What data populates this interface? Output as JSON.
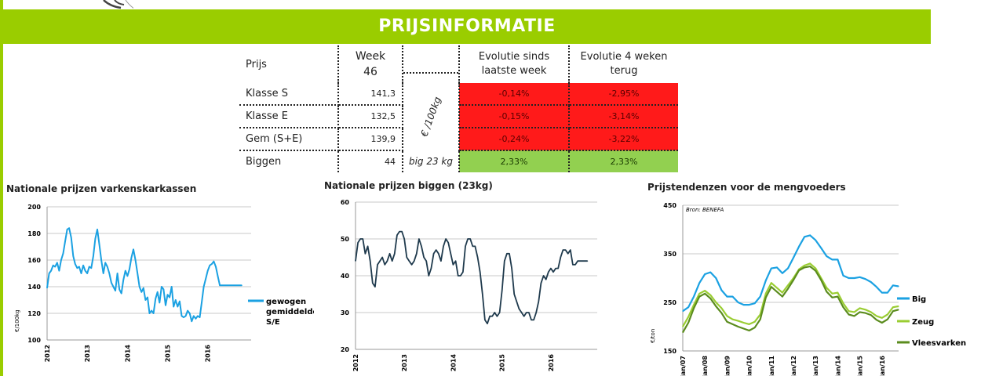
{
  "header": {
    "title": "PRIJSINFORMATIE"
  },
  "price_table": {
    "col_prijs": "Prijs",
    "col_week": "Week",
    "week_number": "46",
    "col_evo_week": "Evolutie sinds laatste week",
    "col_evo_4w": "Evolutie 4 weken terug",
    "unit_main": "€ /100kg",
    "rows": [
      {
        "label": "Klasse S",
        "value": "141,3",
        "evo_week": "-0,14%",
        "evo_4w": "-2,95%"
      },
      {
        "label": "Klasse E",
        "value": "132,5",
        "evo_week": "-0,15%",
        "evo_4w": "-3,14%"
      },
      {
        "label": "Gem (S+E)",
        "value": "139,9",
        "evo_week": "-0,24%",
        "evo_4w": "-3,22%"
      },
      {
        "label": "Biggen",
        "value": "44",
        "unit": "big 23 kg",
        "evo_week": "2,33%",
        "evo_4w": "2,33%"
      }
    ],
    "colors": {
      "negative": "#ff1a1a",
      "positive": "#92d050"
    }
  },
  "chart_data": [
    {
      "type": "line",
      "title": "Nationale prijzen varkenskarkassen",
      "ylabel": "€/100kg",
      "ylim": [
        100,
        200
      ],
      "yticks": [
        "100",
        "120",
        "140",
        "160",
        "180",
        "200"
      ],
      "xtick_labels": [
        "2012",
        "2013",
        "2014",
        "2015",
        "2016"
      ],
      "grid": true,
      "legend": "right",
      "series": [
        {
          "name": "gewogen gemiddelde S/E",
          "color": "#1ba1e2",
          "x": [
            2012.0,
            2012.05,
            2012.1,
            2012.15,
            2012.2,
            2012.25,
            2012.3,
            2012.35,
            2012.4,
            2012.45,
            2012.5,
            2012.55,
            2012.6,
            2012.65,
            2012.7,
            2012.75,
            2012.8,
            2012.85,
            2012.9,
            2012.95,
            2013.0,
            2013.05,
            2013.1,
            2013.15,
            2013.2,
            2013.25,
            2013.3,
            2013.35,
            2013.4,
            2013.45,
            2013.5,
            2013.55,
            2013.6,
            2013.65,
            2013.7,
            2013.75,
            2013.8,
            2013.85,
            2013.9,
            2013.95,
            2014.0,
            2014.05,
            2014.1,
            2014.15,
            2014.2,
            2014.25,
            2014.3,
            2014.35,
            2014.4,
            2014.45,
            2014.5,
            2014.55,
            2014.6,
            2014.65,
            2014.7,
            2014.75,
            2014.8,
            2014.85,
            2014.9,
            2014.95,
            2015.0,
            2015.05,
            2015.1,
            2015.15,
            2015.2,
            2015.25,
            2015.3,
            2015.35,
            2015.4,
            2015.45,
            2015.5,
            2015.55,
            2015.6,
            2015.65,
            2015.7,
            2015.75,
            2015.8,
            2015.85,
            2015.9,
            2015.95,
            2016.0,
            2016.05,
            2016.1,
            2016.15,
            2016.2,
            2016.25,
            2016.3,
            2016.35,
            2016.4,
            2016.45,
            2016.5,
            2016.55,
            2016.6,
            2016.65,
            2016.7,
            2016.75,
            2016.8,
            2016.85
          ],
          "values": [
            139,
            150,
            152,
            156,
            155,
            158,
            152,
            160,
            165,
            174,
            183,
            184,
            177,
            163,
            157,
            154,
            155,
            150,
            156,
            152,
            150,
            155,
            154,
            163,
            176,
            183,
            172,
            160,
            150,
            158,
            155,
            150,
            143,
            140,
            137,
            150,
            138,
            135,
            145,
            152,
            148,
            153,
            162,
            168,
            160,
            150,
            140,
            136,
            139,
            130,
            132,
            120,
            122,
            120,
            131,
            136,
            128,
            140,
            138,
            126,
            134,
            132,
            140,
            125,
            130,
            125,
            129,
            118,
            117,
            118,
            122,
            120,
            114,
            118,
            116,
            118,
            117,
            128,
            140,
            146,
            152,
            156,
            157,
            159,
            155,
            148,
            141,
            141,
            141,
            141,
            141,
            141,
            141,
            141,
            141,
            141,
            141,
            141
          ]
        }
      ]
    },
    {
      "type": "line",
      "title": "Nationale prijzen biggen (23kg)",
      "ylim": [
        20,
        60
      ],
      "yticks": [
        "20",
        "30",
        "40",
        "50",
        "60"
      ],
      "xtick_labels": [
        "2012",
        "2013",
        "2014",
        "2015",
        "2016"
      ],
      "grid": true,
      "series": [
        {
          "color": "#1f3a4d",
          "x": [
            2012.0,
            2012.05,
            2012.1,
            2012.15,
            2012.2,
            2012.25,
            2012.3,
            2012.35,
            2012.4,
            2012.45,
            2012.5,
            2012.55,
            2012.6,
            2012.65,
            2012.7,
            2012.75,
            2012.8,
            2012.85,
            2012.9,
            2012.95,
            2013.0,
            2013.05,
            2013.1,
            2013.15,
            2013.2,
            2013.25,
            2013.3,
            2013.35,
            2013.4,
            2013.45,
            2013.5,
            2013.55,
            2013.6,
            2013.65,
            2013.7,
            2013.75,
            2013.8,
            2013.85,
            2013.9,
            2013.95,
            2014.0,
            2014.05,
            2014.1,
            2014.15,
            2014.2,
            2014.25,
            2014.3,
            2014.35,
            2014.4,
            2014.45,
            2014.5,
            2014.55,
            2014.6,
            2014.65,
            2014.7,
            2014.75,
            2014.8,
            2014.85,
            2014.9,
            2014.95,
            2015.0,
            2015.05,
            2015.1,
            2015.15,
            2015.2,
            2015.25,
            2015.3,
            2015.35,
            2015.4,
            2015.45,
            2015.5,
            2015.55,
            2015.6,
            2015.65,
            2015.7,
            2015.75,
            2015.8,
            2015.85,
            2015.9,
            2015.95,
            2016.0,
            2016.05,
            2016.1,
            2016.15,
            2016.2,
            2016.25,
            2016.3,
            2016.35,
            2016.4,
            2016.45,
            2016.5,
            2016.55,
            2016.6,
            2016.65,
            2016.7,
            2016.75
          ],
          "values": [
            44,
            49,
            50,
            50,
            46,
            48,
            44,
            38,
            37,
            43,
            44,
            45,
            43,
            44,
            46,
            44,
            46,
            51,
            52,
            52,
            50,
            45,
            44,
            43,
            44,
            46,
            50,
            48,
            45,
            44,
            40,
            42,
            46,
            47,
            46,
            44,
            48,
            50,
            49,
            46,
            43,
            44,
            40,
            40,
            41,
            48,
            50,
            50,
            48,
            48,
            45,
            41,
            35,
            28,
            27,
            29,
            29,
            30,
            29,
            30,
            36,
            44,
            46,
            46,
            42,
            35,
            33,
            31,
            30,
            29,
            30,
            30,
            28,
            28,
            30,
            33,
            38,
            40,
            39,
            41,
            42,
            41,
            42,
            42,
            45,
            47,
            47,
            46,
            47,
            43,
            43,
            44,
            44,
            44,
            44,
            44
          ]
        }
      ]
    },
    {
      "type": "line",
      "title": "Prijstendenzen voor de mengvoeders",
      "subtitle": "Bron: BENEFA",
      "ylabel": "€/ton",
      "ylim": [
        150,
        450
      ],
      "yticks": [
        "150",
        "250",
        "350",
        "450"
      ],
      "xtick_labels": [
        "jan/07",
        "jan/08",
        "jan/09",
        "jan/10",
        "jan/11",
        "jan/12",
        "jan/13",
        "jan/14",
        "jan/15",
        "jan/16"
      ],
      "grid": true,
      "legend": "right",
      "x": [
        0,
        0.25,
        0.5,
        0.75,
        1.0,
        1.25,
        1.5,
        1.75,
        2.0,
        2.25,
        2.5,
        2.75,
        3.0,
        3.25,
        3.5,
        3.75,
        4.0,
        4.25,
        4.5,
        4.75,
        5.0,
        5.25,
        5.5,
        5.75,
        6.0,
        6.25,
        6.5,
        6.75,
        7.0,
        7.25,
        7.5,
        7.75,
        8.0,
        8.25,
        8.5,
        8.75,
        9.0,
        9.25,
        9.5,
        9.75
      ],
      "series": [
        {
          "name": "Big",
          "color": "#1ba1e2",
          "values": [
            232,
            240,
            262,
            290,
            308,
            312,
            300,
            275,
            262,
            262,
            250,
            245,
            245,
            248,
            262,
            295,
            320,
            322,
            310,
            320,
            342,
            365,
            385,
            388,
            378,
            362,
            345,
            338,
            338,
            305,
            300,
            300,
            302,
            298,
            292,
            282,
            270,
            270,
            285,
            283
          ]
        },
        {
          "name": "Zeug",
          "color": "#9acd32",
          "values": [
            200,
            220,
            245,
            268,
            274,
            265,
            250,
            238,
            222,
            215,
            212,
            208,
            205,
            210,
            225,
            268,
            290,
            280,
            270,
            285,
            300,
            318,
            326,
            330,
            320,
            300,
            280,
            268,
            270,
            248,
            232,
            230,
            238,
            235,
            230,
            222,
            218,
            225,
            240,
            242
          ]
        },
        {
          "name": "Vleesvarken",
          "color": "#5b8c1e",
          "values": [
            188,
            208,
            238,
            262,
            268,
            258,
            242,
            228,
            210,
            205,
            200,
            196,
            192,
            198,
            215,
            260,
            282,
            272,
            262,
            278,
            296,
            316,
            322,
            324,
            315,
            296,
            272,
            260,
            262,
            240,
            225,
            222,
            230,
            228,
            224,
            214,
            208,
            215,
            232,
            235
          ]
        }
      ]
    }
  ]
}
